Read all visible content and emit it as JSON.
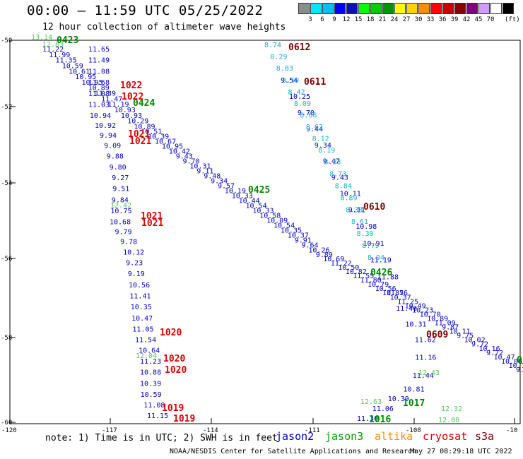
{
  "title": "00:00 – 11:59 UTC 05/25/2022",
  "subtitle": "12 hour collection of altimeter wave heights",
  "colorbar": {
    "unit": "(ft)",
    "colors": [
      "#8c8c8c",
      "#00e6ff",
      "#00bfff",
      "#0000ff",
      "#1010b0",
      "#00ff00",
      "#00cc00",
      "#009600",
      "#ffff00",
      "#ffd200",
      "#ff8c00",
      "#ff0000",
      "#c80000",
      "#8b0000",
      "#800080",
      "#d29bff",
      "#ffffff",
      "#000000"
    ],
    "labels": [
      "3",
      "6",
      "9",
      "12",
      "15",
      "18",
      "21",
      "24",
      "27",
      "30",
      "33",
      "36",
      "39",
      "42",
      "45",
      "70"
    ]
  },
  "axes": {
    "lat_labels": [
      "-50",
      "-52",
      "-54",
      "-56",
      "-58",
      "-60"
    ],
    "lon_labels": [
      "-120",
      "-117",
      "-114",
      "-111",
      "-108",
      "-10"
    ]
  },
  "note": "note: 1) Time is in UTC; 2) SWH is in feet",
  "satellites": [
    {
      "name": "jason2",
      "color": "#0000cc"
    },
    {
      "name": "jason3",
      "color": "#00a000"
    },
    {
      "name": "altika",
      "color": "#ff8c00"
    },
    {
      "name": "cryosat",
      "color": "#dd0000"
    },
    {
      "name": "s3a",
      "color": "#800000"
    }
  ],
  "credit": "NOAA/NESDIS Center for Satellite Applications and Research",
  "timestamp": "May 27 08:29:18 UTC 2022",
  "tracks": {
    "jason2_a": {
      "color": "#0000cc",
      "values": [
        "11.22",
        "11.99",
        "11.35",
        "10.59",
        "10.61",
        "10.95",
        "10.95",
        "10.89",
        "11.39",
        "11.47",
        "11.19",
        "10.93",
        "10.93",
        "10.29",
        "10.89",
        "10.51",
        "10.39",
        "10.67",
        "10.95",
        "10.42",
        "9.43",
        "9.70",
        "10.31",
        "9.11",
        "9.48",
        "9.34",
        "9.57",
        "10.19",
        "10.33",
        "10.44",
        "10.54",
        "10.33",
        "10.58",
        "10.09",
        "10.54",
        "10.35",
        "10.37",
        "9.91",
        "9.64",
        "10.26",
        "9.89",
        "10.69",
        "11.22",
        "10.50",
        "10.82",
        "11.55",
        "11.80",
        "10.79",
        "10.56",
        "10.85",
        "10.37",
        "11.25",
        "10.49",
        "10.23",
        "10.70",
        "10.89",
        "11.09",
        "9.87",
        "10.11",
        "9.75",
        "10.02",
        "9.72",
        "10.16",
        "9.72",
        "10.47",
        "10.06",
        "10.79",
        "9.52"
      ]
    },
    "jason2_b": {
      "color": "#0000cc",
      "values": [
        "11.65",
        "11.49",
        "11.08",
        "11.68",
        "11.08",
        "11.03",
        "10.94",
        "10.92",
        "9.94",
        "9.09",
        "9.88",
        "9.80",
        "9.27",
        "9.51",
        "9.84",
        "10.75",
        "10.68",
        "9.79",
        "9.78",
        "10.12",
        "9.23",
        "9.19",
        "10.56",
        "11.41",
        "10.35",
        "10.47",
        "11.05",
        "11.54",
        "10.64",
        "11.23",
        "10.88",
        "10.39",
        "10.59",
        "11.08",
        "11.15"
      ]
    },
    "jason2_c": {
      "color": "#0000cc",
      "values": [
        "9.54",
        "10.25",
        "9.70",
        "9.44",
        "9.34",
        "9.47",
        "9.43",
        "10.11",
        "9.11",
        "10.98",
        "10.91",
        "11.19",
        "11.88",
        "11.76",
        "11.40",
        "10.31",
        "11.62",
        "11.16",
        "11.44",
        "10.81",
        "10.39",
        "11.06",
        "11.30"
      ]
    },
    "altika": {
      "color": "#1ab0d0",
      "values": [
        "8.74",
        "8.29",
        "8.83",
        "8.59",
        "8.42",
        "8.09",
        "8.66",
        "8.62",
        "8.12",
        "8.19",
        "8.33",
        "8.73",
        "8.84",
        "8.89",
        "8.38",
        "8.61",
        "8.30",
        "8.79",
        "8.94"
      ]
    },
    "jason3": {
      "color": "#55cc55",
      "values": [
        "13.14",
        "12.83",
        "12.42",
        "12.04",
        "12.63",
        "12.43",
        "12.32",
        "12.08"
      ]
    }
  },
  "time_labels": [
    {
      "text": "0423",
      "color": "#008800"
    },
    {
      "text": "1022",
      "color": "#dd0000"
    },
    {
      "text": "1022",
      "color": "#dd0000"
    },
    {
      "text": "0424",
      "color": "#008800"
    },
    {
      "text": "1021",
      "color": "#dd0000"
    },
    {
      "text": "1021",
      "color": "#dd0000"
    },
    {
      "text": "0425",
      "color": "#008800"
    },
    {
      "text": "1021",
      "color": "#dd0000"
    },
    {
      "text": "1021",
      "color": "#dd0000"
    },
    {
      "text": "0612",
      "color": "#800000"
    },
    {
      "text": "0611",
      "color": "#800000"
    },
    {
      "text": "0610",
      "color": "#800000"
    },
    {
      "text": "0426",
      "color": "#008800"
    },
    {
      "text": "1020",
      "color": "#dd0000"
    },
    {
      "text": "1020",
      "color": "#dd0000"
    },
    {
      "text": "1020",
      "color": "#dd0000"
    },
    {
      "text": "1019",
      "color": "#dd0000"
    },
    {
      "text": "1019",
      "color": "#dd0000"
    },
    {
      "text": "0609",
      "color": "#800000"
    },
    {
      "text": "1017",
      "color": "#008800"
    },
    {
      "text": "1016",
      "color": "#008800"
    },
    {
      "text": "0",
      "color": "#008800"
    }
  ]
}
